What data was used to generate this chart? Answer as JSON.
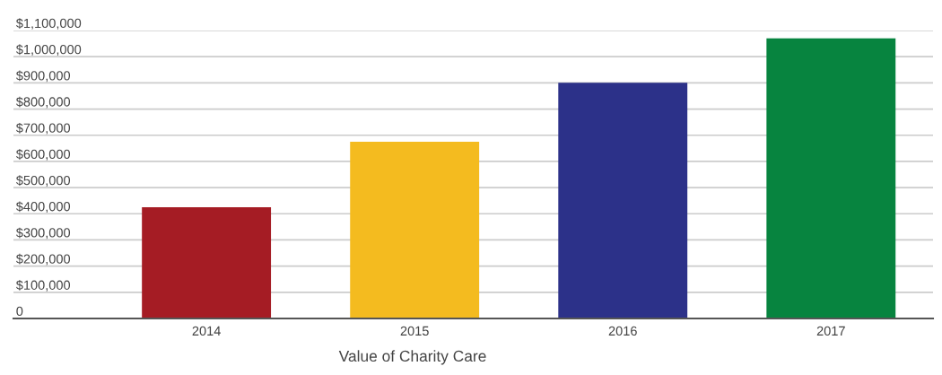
{
  "chart_data": {
    "type": "bar",
    "xlabel": "Value of Charity Care",
    "categories": [
      "2014",
      "2015",
      "2016",
      "2017"
    ],
    "values": [
      425000,
      675000,
      900000,
      1070000
    ],
    "colors": [
      "#a51c24",
      "#f4bb1f",
      "#2c3189",
      "#07843f"
    ],
    "ylim": [
      0,
      1100000
    ],
    "yticks": [
      {
        "value": 0,
        "label": "0"
      },
      {
        "value": 100000,
        "label": "$100,000"
      },
      {
        "value": 200000,
        "label": "$200,000"
      },
      {
        "value": 300000,
        "label": "$300,000"
      },
      {
        "value": 400000,
        "label": "$400,000"
      },
      {
        "value": 500000,
        "label": "$500,000"
      },
      {
        "value": 600000,
        "label": "$600,000"
      },
      {
        "value": 700000,
        "label": "$700,000"
      },
      {
        "value": 800000,
        "label": "$800,000"
      },
      {
        "value": 900000,
        "label": "$900,000"
      },
      {
        "value": 1000000,
        "label": "$1,000,000"
      },
      {
        "value": 1100000,
        "label": "$1,100,000"
      }
    ],
    "grid": "y"
  }
}
